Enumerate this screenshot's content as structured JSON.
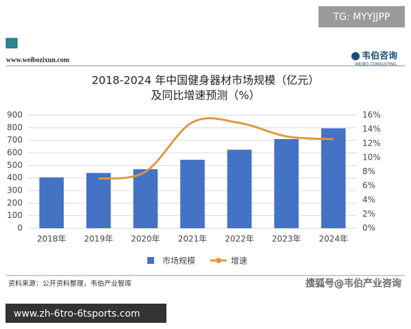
{
  "badge": "TG: MYYJJPP",
  "site": "www.weibozixun.com",
  "logo": {
    "name": "韦伯咨询",
    "sub": "WEIBO CONSULTING"
  },
  "chart_data": {
    "type": "bar",
    "title": [
      "2018-2024 年中国健身器材市场规模（亿元）",
      "及同比增速预测（%）"
    ],
    "categories": [
      "2018年",
      "2019年",
      "2020年",
      "2021年",
      "2022年",
      "2023年",
      "2024年"
    ],
    "series": [
      {
        "name": "市场规模",
        "type": "bar",
        "color": "#4472c4",
        "values": [
          405,
          440,
          470,
          545,
          625,
          710,
          795
        ]
      },
      {
        "name": "增速",
        "type": "line",
        "color": "#e3963e",
        "axis": "y2",
        "values": [
          null,
          7,
          8,
          15,
          14.9,
          13,
          12.6
        ]
      }
    ],
    "ylim": [
      0,
      900
    ],
    "yticks": [
      0,
      100,
      200,
      300,
      400,
      500,
      600,
      700,
      800,
      900
    ],
    "y2lim": [
      0,
      16
    ],
    "y2ticks": [
      {
        "value": 0,
        "label": "0%"
      },
      {
        "value": 2,
        "label": "2%"
      },
      {
        "value": 4,
        "label": "4%"
      },
      {
        "value": 6,
        "label": "6%"
      },
      {
        "value": 8,
        "label": "8%"
      },
      {
        "value": 10,
        "label": "10%"
      },
      {
        "value": 12,
        "label": "12%"
      },
      {
        "value": 14,
        "label": "14%"
      },
      {
        "value": 16,
        "label": "16%"
      }
    ],
    "grid": true,
    "legend": "bottom"
  },
  "source": "资料来源：公开资料整理，韦伯产业智库",
  "footer": "www.zh-6tro-6tsports.com",
  "sohu": "搜狐号@韦伯产业咨询"
}
